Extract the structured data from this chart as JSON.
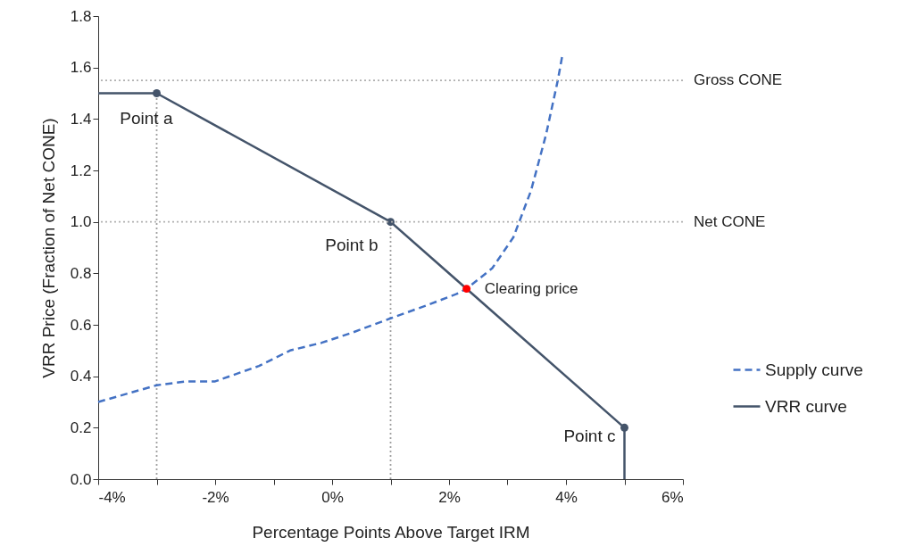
{
  "chart_data": {
    "type": "line",
    "xlabel": "Percentage Points Above Target IRM",
    "ylabel": "VRR Price (Fraction of Net CONE)",
    "xlim": [
      -4,
      6
    ],
    "ylim": [
      0,
      1.8
    ],
    "xticks": [
      {
        "value": -4,
        "label": "-4%"
      },
      {
        "value": -3,
        "label": null
      },
      {
        "value": -2,
        "label": "-2%"
      },
      {
        "value": -1,
        "label": null
      },
      {
        "value": 0,
        "label": "0%"
      },
      {
        "value": 1,
        "label": null
      },
      {
        "value": 2,
        "label": "2%"
      },
      {
        "value": 3,
        "label": null
      },
      {
        "value": 4,
        "label": "4%"
      },
      {
        "value": 5,
        "label": null
      },
      {
        "value": 6,
        "label": "6%"
      }
    ],
    "yticks": [
      {
        "value": 0,
        "label": "0.0"
      },
      {
        "value": 0.2,
        "label": "0.2"
      },
      {
        "value": 0.4,
        "label": "0.4"
      },
      {
        "value": 0.6,
        "label": "0.6"
      },
      {
        "value": 0.8,
        "label": "0.8"
      },
      {
        "value": 1,
        "label": "1.0"
      },
      {
        "value": 1.2,
        "label": "1.2"
      },
      {
        "value": 1.4,
        "label": "1.4"
      },
      {
        "value": 1.6,
        "label": "1.6"
      },
      {
        "value": 1.8,
        "label": "1.8"
      }
    ],
    "grid": false,
    "legend": "right",
    "series": [
      {
        "type": "line",
        "color": "#a0a0a0",
        "line_style": "dotted",
        "x": [
          -3,
          -3
        ],
        "values": [
          0,
          1.5
        ]
      },
      {
        "type": "line",
        "color": "#a0a0a0",
        "line_style": "dotted",
        "x": [
          1,
          1
        ],
        "values": [
          0,
          1.0
        ]
      },
      {
        "name": "Supply curve",
        "type": "line",
        "color": "#4472c4",
        "line_style": "dashed",
        "x": [
          -4,
          -3,
          -2.5,
          -2,
          -1.25,
          -0.72,
          -0.18,
          0.35,
          1,
          1.67,
          2.13,
          2.3,
          2.74,
          3.1,
          3.4,
          3.66,
          3.86,
          3.94
        ],
        "values": [
          0.3,
          0.365,
          0.38,
          0.38,
          0.44,
          0.5,
          0.53,
          0.57,
          0.625,
          0.68,
          0.72,
          0.74,
          0.82,
          0.94,
          1.12,
          1.34,
          1.55,
          1.65
        ]
      },
      {
        "name": "VRR curve",
        "type": "line",
        "color": "#44546a",
        "line_style": "solid",
        "x": [
          -4,
          -3,
          1,
          5,
          5
        ],
        "values": [
          1.5,
          1.5,
          1.0,
          0.2,
          0
        ]
      },
      {
        "type": "scatter",
        "color": "#44546a",
        "marker": "circle",
        "x": [
          -3,
          1,
          5
        ],
        "values": [
          1.5,
          1.0,
          0.2
        ]
      },
      {
        "type": "scatter",
        "color": "#ff0000",
        "marker": "circle",
        "x": [
          2.3
        ],
        "values": [
          0.74
        ]
      }
    ],
    "ref_lines": [
      {
        "axis": "y",
        "value": 1.55,
        "label": "Gross CONE",
        "color": "#b0b0b0",
        "line_style": "dotted"
      },
      {
        "axis": "y",
        "value": 1.0,
        "label": "Net CONE",
        "color": "#b0b0b0",
        "line_style": "dotted"
      }
    ],
    "annotations": [
      {
        "text": "Point a",
        "x": -3,
        "y": 1.5
      },
      {
        "text": "Point b",
        "x": 1,
        "y": 1.0
      },
      {
        "text": "Point c",
        "x": 5,
        "y": 0.2
      },
      {
        "text": "Clearing price",
        "x": 2.3,
        "y": 0.74
      }
    ]
  }
}
